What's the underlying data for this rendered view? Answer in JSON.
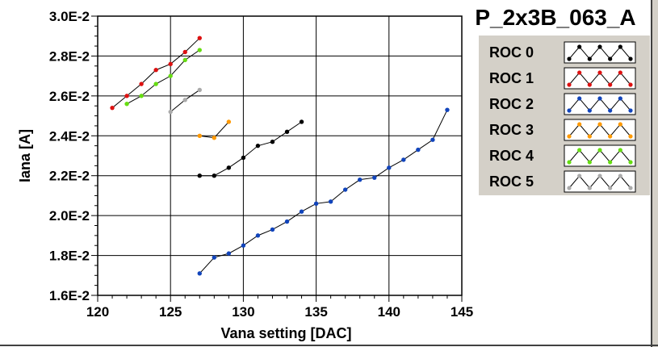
{
  "chart_data": {
    "type": "line",
    "title": "P_2x3B_063_A",
    "xlabel": "Vana setting [DAC]",
    "ylabel": "Iana [A]",
    "xlim": [
      120,
      145
    ],
    "ylim": [
      0.016,
      0.03
    ],
    "x_ticks": [
      "120",
      "125",
      "130",
      "135",
      "140",
      "145"
    ],
    "y_ticks": [
      "1.6E-2",
      "1.8E-2",
      "2.0E-2",
      "2.2E-2",
      "2.4E-2",
      "2.6E-2",
      "2.8E-2",
      "3.0E-2"
    ],
    "grid": true,
    "legend_position": "right",
    "series": [
      {
        "name": "ROC 0",
        "color": "#000000",
        "x": [
          127,
          128,
          129,
          130,
          131,
          132,
          133,
          134
        ],
        "y": [
          0.022,
          0.022,
          0.0224,
          0.0229,
          0.0235,
          0.0237,
          0.0242,
          0.0247
        ]
      },
      {
        "name": "ROC 1",
        "color": "#dd1111",
        "x": [
          121,
          122,
          123,
          124,
          125,
          126,
          127
        ],
        "y": [
          0.0254,
          0.026,
          0.0266,
          0.0273,
          0.0276,
          0.0282,
          0.0289
        ]
      },
      {
        "name": "ROC 2",
        "color": "#1144bb",
        "x": [
          127,
          128,
          129,
          130,
          131,
          132,
          133,
          134,
          135,
          136,
          137,
          138,
          139,
          140,
          141,
          142,
          143,
          144
        ],
        "y": [
          0.0171,
          0.0179,
          0.0181,
          0.0185,
          0.019,
          0.0193,
          0.0197,
          0.0202,
          0.0206,
          0.0207,
          0.0213,
          0.0218,
          0.0219,
          0.0224,
          0.0228,
          0.0233,
          0.0238,
          0.0253
        ]
      },
      {
        "name": "ROC 3",
        "color": "#ff9900",
        "x": [
          127,
          128,
          129
        ],
        "y": [
          0.024,
          0.0239,
          0.0247
        ]
      },
      {
        "name": "ROC 4",
        "color": "#66dd11",
        "x": [
          122,
          123,
          124,
          125,
          126,
          127
        ],
        "y": [
          0.0256,
          0.026,
          0.0266,
          0.027,
          0.0278,
          0.0283
        ]
      },
      {
        "name": "ROC 5",
        "color": "#aaaaaa",
        "x": [
          125,
          126,
          127
        ],
        "y": [
          0.0252,
          0.0258,
          0.0263
        ]
      }
    ]
  }
}
